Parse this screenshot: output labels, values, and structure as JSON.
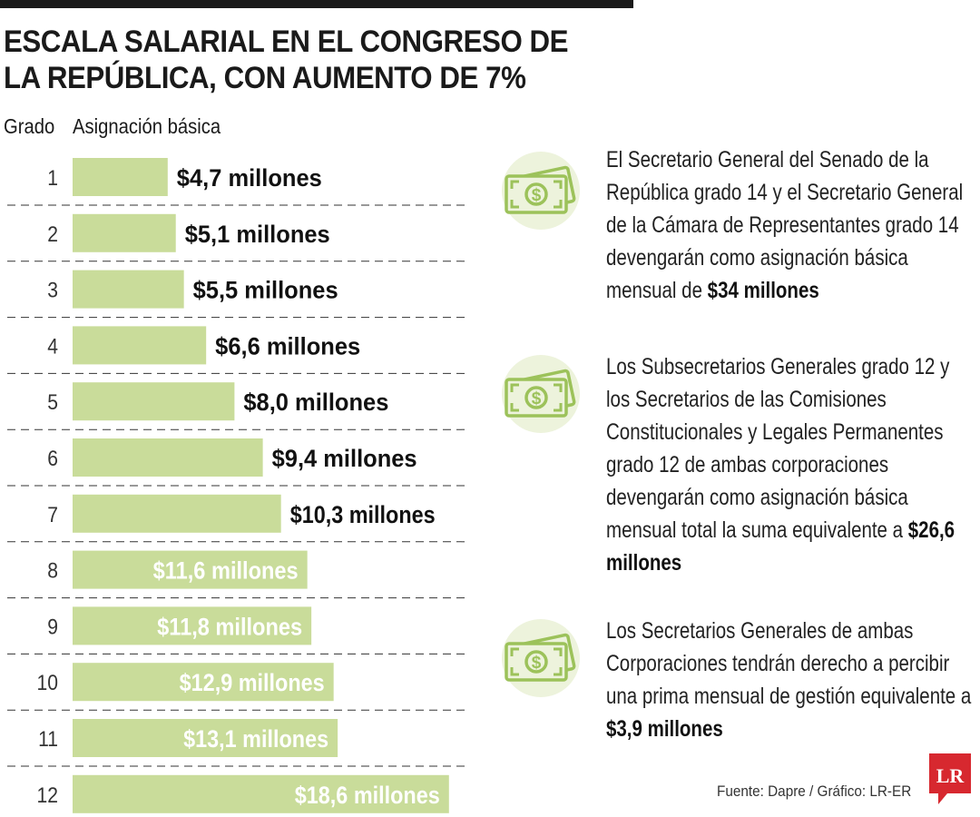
{
  "header": {
    "title_line1": "ESCALA SALARIAL EN EL CONGRESO DE",
    "title_line2": "LA REPÚBLICA, CON AUMENTO DE 7%"
  },
  "columns": {
    "grado": "Grado",
    "asignacion": "Asignación básica"
  },
  "chart_data": {
    "type": "bar",
    "orientation": "horizontal",
    "categories": [
      "1",
      "2",
      "3",
      "4",
      "5",
      "6",
      "7",
      "8",
      "9",
      "10",
      "11",
      "12"
    ],
    "values": [
      4.7,
      5.1,
      5.5,
      6.6,
      8.0,
      9.4,
      10.3,
      11.6,
      11.8,
      12.9,
      13.1,
      18.6
    ],
    "value_labels": [
      "$4,7 millones",
      "$5,1 millones",
      "$5,5 millones",
      "$6,6 millones",
      "$8,0 millones",
      "$9,4 millones",
      "$10,3 millones",
      "$11,6 millones",
      "$11,8 millones",
      "$12,9 millones",
      "$13,1 millones",
      "$18,6 millones"
    ],
    "xlabel": "Asignación básica",
    "ylabel": "Grado",
    "unit": "millones de pesos",
    "xlim": [
      0,
      19
    ],
    "bar_color": "#c9dc9a",
    "grid": false
  },
  "info": [
    {
      "text": "El Secretario General del Senado de la República grado 14 y el Secretario General de la Cámara de Representantes grado 14 devengarán como asignación básica mensual de",
      "highlight": "$34 millones"
    },
    {
      "text": "Los Subsecretarios Generales grado 12 y los Secretarios de las Comisiones Constitucionales y Legales Permanentes grado 12 de ambas corporaciones devengarán como asignación básica mensual total la suma equivalente a",
      "highlight": "$26,6 millones"
    },
    {
      "text": "Los Secretarios Generales de ambas Corporaciones tendrán derecho a percibir una prima mensual de gestión equivalente a",
      "highlight": "$3,9 millones"
    }
  ],
  "icons": {
    "info_icon": "money-bill-icon",
    "icon_bg": "#edf3dc",
    "icon_color": "#9cc25a"
  },
  "footer": {
    "source": "Fuente: Dapre / Gráfico: LR-ER",
    "logo": "LR",
    "logo_color": "#d7282f"
  }
}
